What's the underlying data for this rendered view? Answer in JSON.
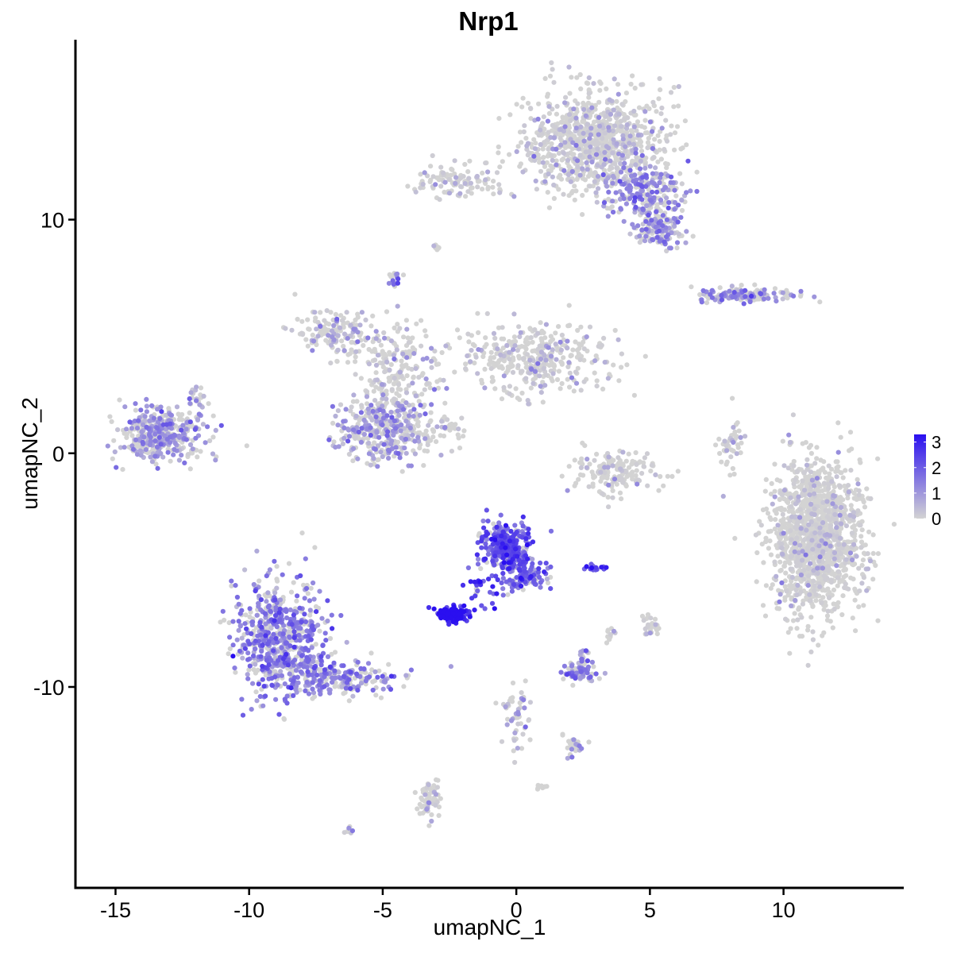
{
  "chart_data": {
    "type": "scatter",
    "title": "Nrp1",
    "xlabel": "umapNC_1",
    "ylabel": "umapNC_2",
    "xlim": [
      -16.5,
      14.5
    ],
    "ylim": [
      -18.6,
      17.7
    ],
    "x_ticks": [
      -15,
      -10,
      -5,
      0,
      5,
      10
    ],
    "y_ticks": [
      -10,
      0,
      10
    ],
    "x_tick_labels": [
      "-15",
      "-10",
      "-5",
      "0",
      "5",
      "10"
    ],
    "y_tick_labels": [
      "-10",
      "0",
      "10"
    ],
    "grid": false,
    "legend": {
      "placement": "right",
      "type": "continuous",
      "low_color": "#d3d3d3",
      "high_color": "#2a0ff0",
      "range": [
        0,
        3.3
      ],
      "breaks": [
        "3",
        "2",
        "1",
        "0"
      ]
    },
    "clusters": [
      {
        "cx": 11.2,
        "cy": -3.6,
        "sx": 1.1,
        "sy": 2.2,
        "n": 1400,
        "expr": 0.02
      },
      {
        "cx": 2.9,
        "cy": 13.3,
        "sx": 1.7,
        "sy": 1.5,
        "n": 950,
        "expr": 0.25
      },
      {
        "cx": -8.8,
        "cy": -8.0,
        "sx": 1.2,
        "sy": 1.6,
        "n": 650,
        "expr": 1.35
      },
      {
        "cx": -6.7,
        "cy": -9.6,
        "sx": 1.5,
        "sy": 0.5,
        "n": 220,
        "expr": 1.35
      },
      {
        "cx": -13.3,
        "cy": 0.8,
        "sx": 1.0,
        "sy": 0.7,
        "n": 380,
        "expr": 1.0
      },
      {
        "cx": -4.9,
        "cy": 1.1,
        "sx": 1.2,
        "sy": 1.0,
        "n": 380,
        "expr": 0.8
      },
      {
        "cx": 0.6,
        "cy": 4.1,
        "sx": 1.8,
        "sy": 1.0,
        "n": 380,
        "expr": 0.3
      },
      {
        "cx": -6.8,
        "cy": 5.2,
        "sx": 1.0,
        "sy": 0.6,
        "n": 150,
        "expr": 0.5
      },
      {
        "cx": -4.5,
        "cy": 3.6,
        "sx": 1.0,
        "sy": 1.5,
        "n": 200,
        "expr": 0.25
      },
      {
        "cx": -0.4,
        "cy": -4.0,
        "sx": 0.6,
        "sy": 0.7,
        "n": 320,
        "expr": 2.1
      },
      {
        "cx": 0.4,
        "cy": -5.2,
        "sx": 0.5,
        "sy": 0.4,
        "n": 100,
        "expr": 1.8
      },
      {
        "cx": -2.4,
        "cy": -6.9,
        "sx": 0.4,
        "sy": 0.2,
        "n": 130,
        "expr": 3.1
      },
      {
        "cx": -1.4,
        "cy": -5.8,
        "sx": 0.5,
        "sy": 0.5,
        "n": 25,
        "expr": 2.4
      },
      {
        "cx": 4.9,
        "cy": 11.2,
        "sx": 1.0,
        "sy": 0.8,
        "n": 200,
        "expr": 1.2
      },
      {
        "cx": 5.3,
        "cy": 9.6,
        "sx": 0.6,
        "sy": 0.5,
        "n": 140,
        "expr": 0.9
      },
      {
        "cx": -2.2,
        "cy": 11.6,
        "sx": 1.0,
        "sy": 0.5,
        "n": 110,
        "expr": 0.1
      },
      {
        "cx": 3.7,
        "cy": -0.8,
        "sx": 1.0,
        "sy": 0.6,
        "n": 160,
        "expr": 0.15
      },
      {
        "cx": 8.6,
        "cy": 6.8,
        "sx": 1.3,
        "sy": 0.2,
        "n": 140,
        "expr": 1.2
      },
      {
        "cx": 2.4,
        "cy": -9.4,
        "sx": 0.45,
        "sy": 0.3,
        "n": 70,
        "expr": 1.4
      },
      {
        "cx": -3.3,
        "cy": -14.8,
        "sx": 0.3,
        "sy": 0.6,
        "n": 60,
        "expr": 0.2
      },
      {
        "cx": 0.0,
        "cy": -11.0,
        "sx": 0.4,
        "sy": 1.0,
        "n": 55,
        "expr": 0.7
      },
      {
        "cx": 8.0,
        "cy": 0.2,
        "sx": 0.3,
        "sy": 0.8,
        "n": 45,
        "expr": 0.1
      },
      {
        "cx": 2.2,
        "cy": -12.5,
        "sx": 0.3,
        "sy": 0.3,
        "n": 30,
        "expr": 0.8
      },
      {
        "cx": 5.0,
        "cy": -7.4,
        "sx": 0.2,
        "sy": 0.3,
        "n": 25,
        "expr": 0.3
      },
      {
        "cx": -4.6,
        "cy": 7.4,
        "sx": 0.15,
        "sy": 0.2,
        "n": 18,
        "expr": 1.5
      },
      {
        "cx": -3.0,
        "cy": 8.8,
        "sx": 0.1,
        "sy": 0.1,
        "n": 10,
        "expr": 0.2
      },
      {
        "cx": 2.9,
        "cy": -4.9,
        "sx": 0.3,
        "sy": 0.1,
        "n": 18,
        "expr": 2.3
      },
      {
        "cx": 3.5,
        "cy": -7.7,
        "sx": 0.15,
        "sy": 0.3,
        "n": 12,
        "expr": 0.2
      },
      {
        "cx": 2.5,
        "cy": -8.6,
        "sx": 0.1,
        "sy": 0.2,
        "n": 10,
        "expr": 1.0
      },
      {
        "cx": 1.0,
        "cy": -14.3,
        "sx": 0.15,
        "sy": 0.1,
        "n": 8,
        "expr": 0.0
      },
      {
        "cx": -6.2,
        "cy": -16.1,
        "sx": 0.1,
        "sy": 0.1,
        "n": 6,
        "expr": 0.5
      },
      {
        "cx": -11.9,
        "cy": 2.3,
        "sx": 0.3,
        "sy": 0.4,
        "n": 20,
        "expr": 0.7
      },
      {
        "cx": -2.7,
        "cy": 1.0,
        "sx": 0.6,
        "sy": 0.4,
        "n": 30,
        "expr": 0.1
      }
    ]
  }
}
